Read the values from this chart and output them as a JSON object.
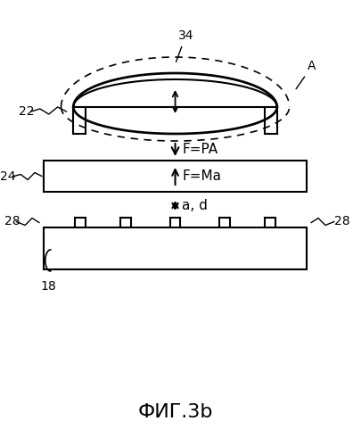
{
  "bg_color": "#ffffff",
  "line_color": "#000000",
  "fig_width": 3.96,
  "fig_height": 5.0,
  "dpi": 100,
  "title": "ФИГ.3b",
  "title_fontsize": 16,
  "label_22": "22",
  "label_24": "24",
  "label_28_left": "28",
  "label_28_right": "28",
  "label_18": "18",
  "label_34": "34",
  "label_A": "A",
  "text_FPA": "F=PA",
  "text_FMa": "F=Ma",
  "text_ad": "a, d"
}
